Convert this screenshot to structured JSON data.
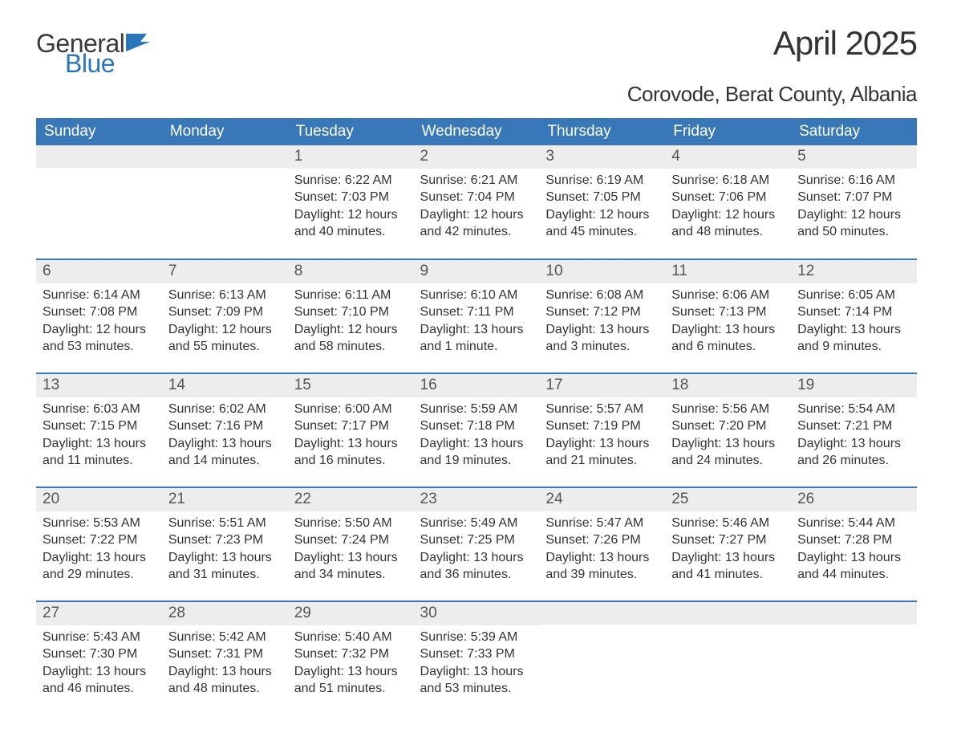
{
  "logo": {
    "word1": "General",
    "word2": "Blue",
    "icon_color": "#2a76b8",
    "text_color": "#3a3a3a"
  },
  "title": "April 2025",
  "subtitle": "Corovode, Berat County, Albania",
  "colors": {
    "header_bg": "#3878b8",
    "header_text": "#ffffff",
    "daynum_bg": "#ededed",
    "daynum_text": "#555555",
    "row_border": "#3878b8",
    "body_text": "#333333",
    "page_bg": "#ffffff"
  },
  "fonts": {
    "title_size": 42,
    "subtitle_size": 26,
    "header_size": 19,
    "daynum_size": 19,
    "body_size": 16
  },
  "weekdays": [
    "Sunday",
    "Monday",
    "Tuesday",
    "Wednesday",
    "Thursday",
    "Friday",
    "Saturday"
  ],
  "layout": {
    "columns": 7,
    "rows": 5,
    "first_weekday_index": 2
  },
  "days": [
    {
      "n": "",
      "sr": "",
      "ss": "",
      "dl1": "",
      "dl2": ""
    },
    {
      "n": "",
      "sr": "",
      "ss": "",
      "dl1": "",
      "dl2": ""
    },
    {
      "n": "1",
      "sr": "Sunrise: 6:22 AM",
      "ss": "Sunset: 7:03 PM",
      "dl1": "Daylight: 12 hours",
      "dl2": "and 40 minutes."
    },
    {
      "n": "2",
      "sr": "Sunrise: 6:21 AM",
      "ss": "Sunset: 7:04 PM",
      "dl1": "Daylight: 12 hours",
      "dl2": "and 42 minutes."
    },
    {
      "n": "3",
      "sr": "Sunrise: 6:19 AM",
      "ss": "Sunset: 7:05 PM",
      "dl1": "Daylight: 12 hours",
      "dl2": "and 45 minutes."
    },
    {
      "n": "4",
      "sr": "Sunrise: 6:18 AM",
      "ss": "Sunset: 7:06 PM",
      "dl1": "Daylight: 12 hours",
      "dl2": "and 48 minutes."
    },
    {
      "n": "5",
      "sr": "Sunrise: 6:16 AM",
      "ss": "Sunset: 7:07 PM",
      "dl1": "Daylight: 12 hours",
      "dl2": "and 50 minutes."
    },
    {
      "n": "6",
      "sr": "Sunrise: 6:14 AM",
      "ss": "Sunset: 7:08 PM",
      "dl1": "Daylight: 12 hours",
      "dl2": "and 53 minutes."
    },
    {
      "n": "7",
      "sr": "Sunrise: 6:13 AM",
      "ss": "Sunset: 7:09 PM",
      "dl1": "Daylight: 12 hours",
      "dl2": "and 55 minutes."
    },
    {
      "n": "8",
      "sr": "Sunrise: 6:11 AM",
      "ss": "Sunset: 7:10 PM",
      "dl1": "Daylight: 12 hours",
      "dl2": "and 58 minutes."
    },
    {
      "n": "9",
      "sr": "Sunrise: 6:10 AM",
      "ss": "Sunset: 7:11 PM",
      "dl1": "Daylight: 13 hours",
      "dl2": "and 1 minute."
    },
    {
      "n": "10",
      "sr": "Sunrise: 6:08 AM",
      "ss": "Sunset: 7:12 PM",
      "dl1": "Daylight: 13 hours",
      "dl2": "and 3 minutes."
    },
    {
      "n": "11",
      "sr": "Sunrise: 6:06 AM",
      "ss": "Sunset: 7:13 PM",
      "dl1": "Daylight: 13 hours",
      "dl2": "and 6 minutes."
    },
    {
      "n": "12",
      "sr": "Sunrise: 6:05 AM",
      "ss": "Sunset: 7:14 PM",
      "dl1": "Daylight: 13 hours",
      "dl2": "and 9 minutes."
    },
    {
      "n": "13",
      "sr": "Sunrise: 6:03 AM",
      "ss": "Sunset: 7:15 PM",
      "dl1": "Daylight: 13 hours",
      "dl2": "and 11 minutes."
    },
    {
      "n": "14",
      "sr": "Sunrise: 6:02 AM",
      "ss": "Sunset: 7:16 PM",
      "dl1": "Daylight: 13 hours",
      "dl2": "and 14 minutes."
    },
    {
      "n": "15",
      "sr": "Sunrise: 6:00 AM",
      "ss": "Sunset: 7:17 PM",
      "dl1": "Daylight: 13 hours",
      "dl2": "and 16 minutes."
    },
    {
      "n": "16",
      "sr": "Sunrise: 5:59 AM",
      "ss": "Sunset: 7:18 PM",
      "dl1": "Daylight: 13 hours",
      "dl2": "and 19 minutes."
    },
    {
      "n": "17",
      "sr": "Sunrise: 5:57 AM",
      "ss": "Sunset: 7:19 PM",
      "dl1": "Daylight: 13 hours",
      "dl2": "and 21 minutes."
    },
    {
      "n": "18",
      "sr": "Sunrise: 5:56 AM",
      "ss": "Sunset: 7:20 PM",
      "dl1": "Daylight: 13 hours",
      "dl2": "and 24 minutes."
    },
    {
      "n": "19",
      "sr": "Sunrise: 5:54 AM",
      "ss": "Sunset: 7:21 PM",
      "dl1": "Daylight: 13 hours",
      "dl2": "and 26 minutes."
    },
    {
      "n": "20",
      "sr": "Sunrise: 5:53 AM",
      "ss": "Sunset: 7:22 PM",
      "dl1": "Daylight: 13 hours",
      "dl2": "and 29 minutes."
    },
    {
      "n": "21",
      "sr": "Sunrise: 5:51 AM",
      "ss": "Sunset: 7:23 PM",
      "dl1": "Daylight: 13 hours",
      "dl2": "and 31 minutes."
    },
    {
      "n": "22",
      "sr": "Sunrise: 5:50 AM",
      "ss": "Sunset: 7:24 PM",
      "dl1": "Daylight: 13 hours",
      "dl2": "and 34 minutes."
    },
    {
      "n": "23",
      "sr": "Sunrise: 5:49 AM",
      "ss": "Sunset: 7:25 PM",
      "dl1": "Daylight: 13 hours",
      "dl2": "and 36 minutes."
    },
    {
      "n": "24",
      "sr": "Sunrise: 5:47 AM",
      "ss": "Sunset: 7:26 PM",
      "dl1": "Daylight: 13 hours",
      "dl2": "and 39 minutes."
    },
    {
      "n": "25",
      "sr": "Sunrise: 5:46 AM",
      "ss": "Sunset: 7:27 PM",
      "dl1": "Daylight: 13 hours",
      "dl2": "and 41 minutes."
    },
    {
      "n": "26",
      "sr": "Sunrise: 5:44 AM",
      "ss": "Sunset: 7:28 PM",
      "dl1": "Daylight: 13 hours",
      "dl2": "and 44 minutes."
    },
    {
      "n": "27",
      "sr": "Sunrise: 5:43 AM",
      "ss": "Sunset: 7:30 PM",
      "dl1": "Daylight: 13 hours",
      "dl2": "and 46 minutes."
    },
    {
      "n": "28",
      "sr": "Sunrise: 5:42 AM",
      "ss": "Sunset: 7:31 PM",
      "dl1": "Daylight: 13 hours",
      "dl2": "and 48 minutes."
    },
    {
      "n": "29",
      "sr": "Sunrise: 5:40 AM",
      "ss": "Sunset: 7:32 PM",
      "dl1": "Daylight: 13 hours",
      "dl2": "and 51 minutes."
    },
    {
      "n": "30",
      "sr": "Sunrise: 5:39 AM",
      "ss": "Sunset: 7:33 PM",
      "dl1": "Daylight: 13 hours",
      "dl2": "and 53 minutes."
    },
    {
      "n": "",
      "sr": "",
      "ss": "",
      "dl1": "",
      "dl2": ""
    },
    {
      "n": "",
      "sr": "",
      "ss": "",
      "dl1": "",
      "dl2": ""
    },
    {
      "n": "",
      "sr": "",
      "ss": "",
      "dl1": "",
      "dl2": ""
    }
  ]
}
